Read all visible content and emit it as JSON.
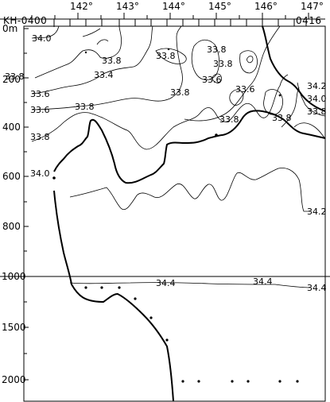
{
  "header": {
    "cruise_label": "KH-0400",
    "station_label": "0416"
  },
  "x_ticks": [
    "142°",
    "143°",
    "144°",
    "145°",
    "146°",
    "147°"
  ],
  "y_ticks_upper": [
    "0m",
    "200",
    "400",
    "600",
    "800",
    "1000"
  ],
  "y_ticks_lower": [
    "1500",
    "2000"
  ],
  "contour_labels": [
    {
      "text": "34.0"
    },
    {
      "text": "33.8"
    },
    {
      "text": "33.8"
    },
    {
      "text": "33.8"
    },
    {
      "text": "33.4"
    },
    {
      "text": "33.8"
    },
    {
      "text": "33.8"
    },
    {
      "text": "33.6"
    },
    {
      "text": "33.6"
    },
    {
      "text": "33.6"
    },
    {
      "text": "33.6"
    },
    {
      "text": "33.8"
    },
    {
      "text": "33.8"
    },
    {
      "text": "33.8"
    },
    {
      "text": "34.2"
    },
    {
      "text": "34.0"
    },
    {
      "text": "33.8"
    },
    {
      "text": "33.8"
    },
    {
      "text": "34.0"
    },
    {
      "text": "34.2"
    },
    {
      "text": "34.4"
    },
    {
      "text": "34.4"
    },
    {
      "text": "34.4"
    }
  ]
}
